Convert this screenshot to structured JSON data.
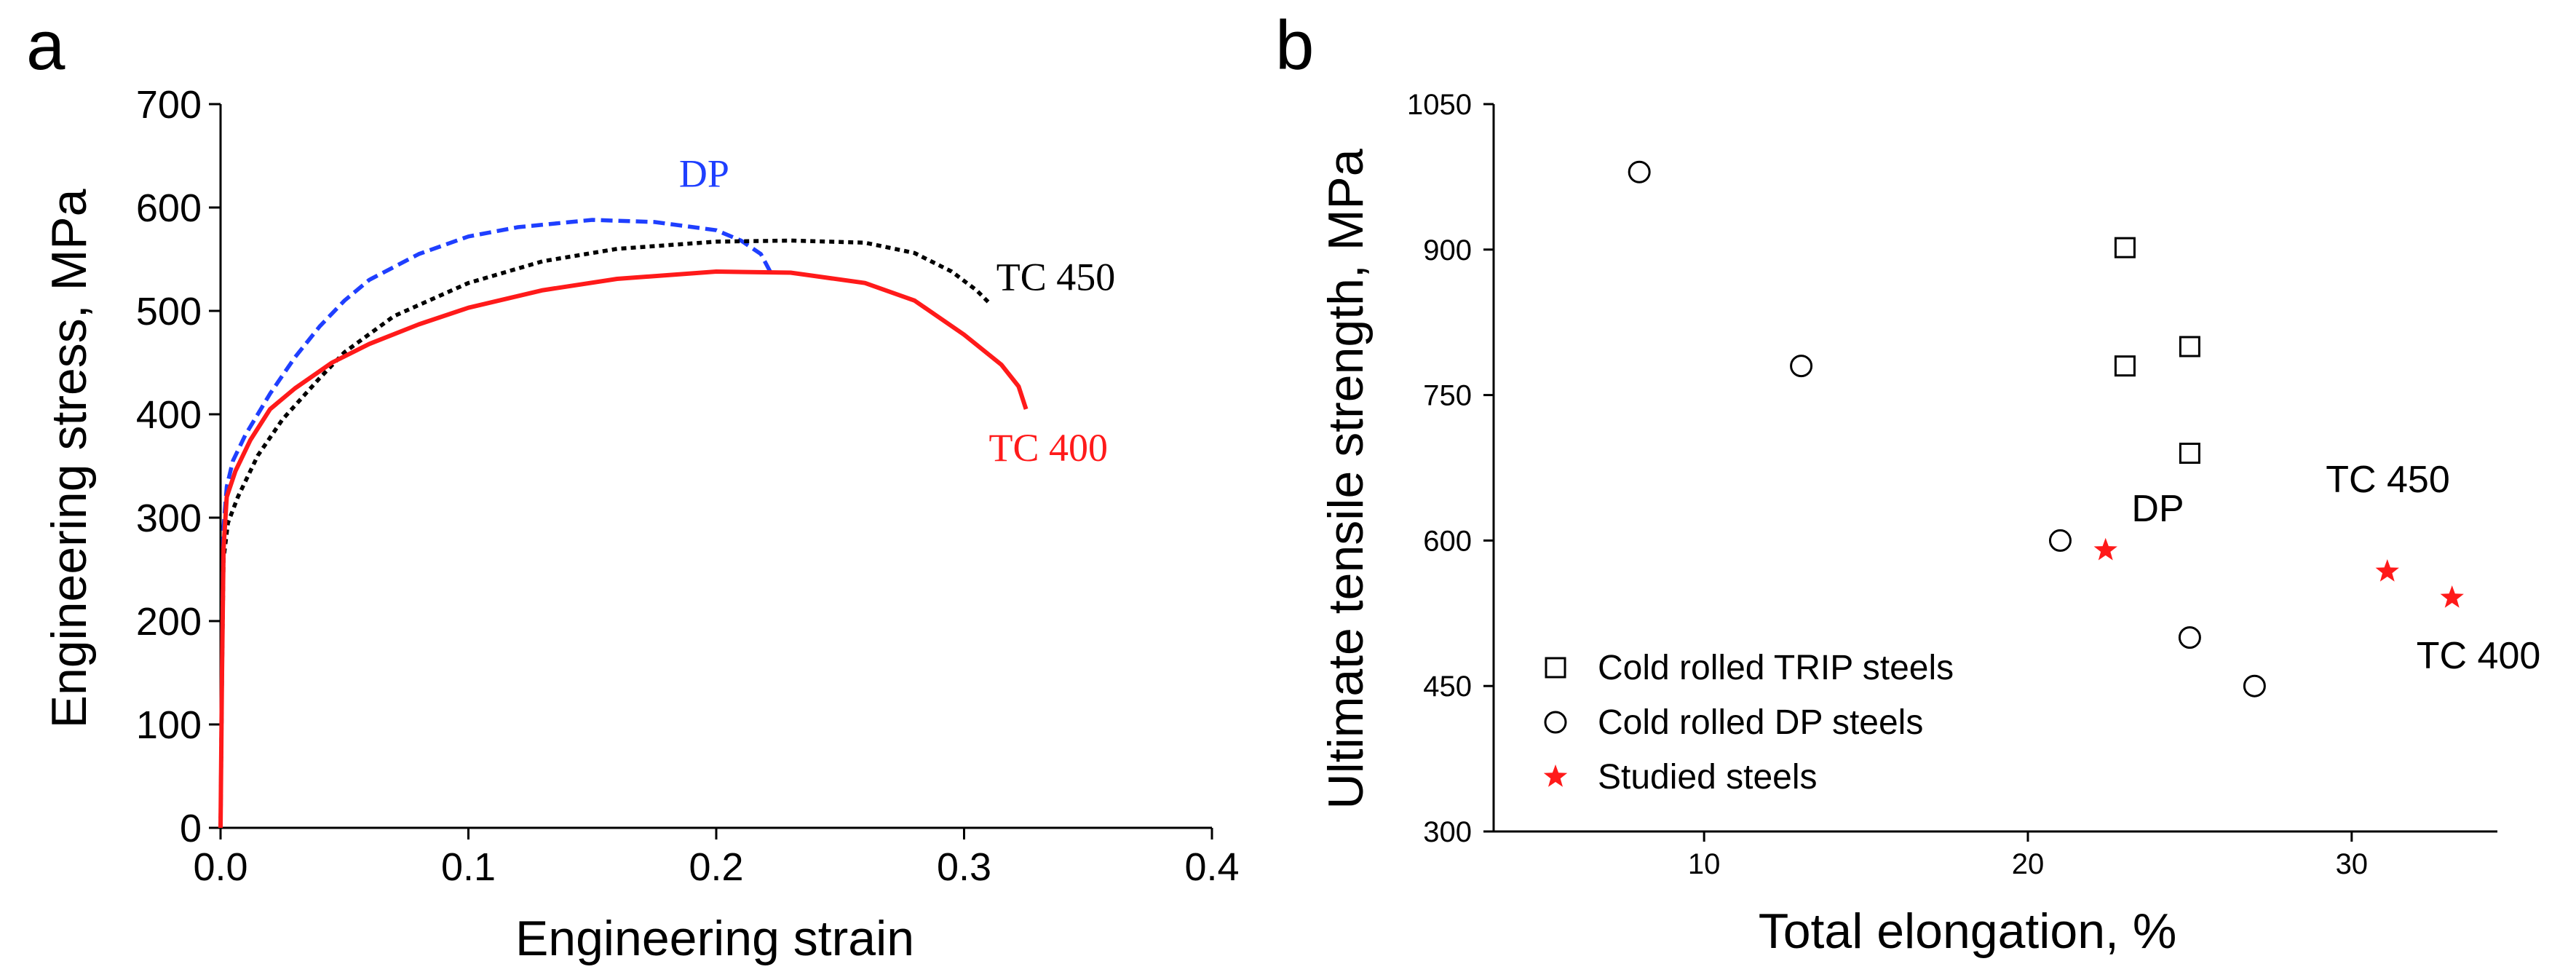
{
  "chart_data": [
    {
      "panel_label": "a",
      "type": "line",
      "xlabel": "Engineering strain",
      "ylabel": "Engineering stress, MPa",
      "xlim": [
        0.0,
        0.4
      ],
      "ylim": [
        0,
        700
      ],
      "x_ticks": [
        0.0,
        0.1,
        0.2,
        0.3,
        0.4
      ],
      "x_tick_labels": [
        "0.0",
        "0.1",
        "0.2",
        "0.3",
        "0.4"
      ],
      "y_ticks": [
        0,
        100,
        200,
        300,
        400,
        500,
        600,
        700
      ],
      "y_tick_labels": [
        "0",
        "100",
        "200",
        "300",
        "400",
        "500",
        "600",
        "700"
      ],
      "series": [
        {
          "name": "DP",
          "label": "DP",
          "color": "#1f3fff",
          "style": "dashed",
          "label_at": [
            0.185,
            620
          ],
          "points": [
            [
              0,
              0
            ],
            [
              0.0006,
              150
            ],
            [
              0.0012,
              290
            ],
            [
              0.0025,
              330
            ],
            [
              0.005,
              355
            ],
            [
              0.01,
              380
            ],
            [
              0.02,
              420
            ],
            [
              0.03,
              455
            ],
            [
              0.04,
              485
            ],
            [
              0.05,
              510
            ],
            [
              0.06,
              530
            ],
            [
              0.08,
              555
            ],
            [
              0.1,
              572
            ],
            [
              0.12,
              581
            ],
            [
              0.15,
              588
            ],
            [
              0.175,
              586
            ],
            [
              0.2,
              578
            ],
            [
              0.21,
              568
            ],
            [
              0.218,
              555
            ],
            [
              0.222,
              537
            ]
          ]
        },
        {
          "name": "TC 450",
          "label": "TC 450",
          "color": "#000000",
          "style": "dotted",
          "label_at": [
            0.313,
            520
          ],
          "points": [
            [
              0,
              0
            ],
            [
              0.0006,
              150
            ],
            [
              0.0012,
              260
            ],
            [
              0.003,
              295
            ],
            [
              0.007,
              320
            ],
            [
              0.015,
              360
            ],
            [
              0.025,
              395
            ],
            [
              0.04,
              435
            ],
            [
              0.05,
              460
            ],
            [
              0.07,
              495
            ],
            [
              0.1,
              527
            ],
            [
              0.13,
              548
            ],
            [
              0.16,
              560
            ],
            [
              0.2,
              567
            ],
            [
              0.23,
              568
            ],
            [
              0.26,
              566
            ],
            [
              0.28,
              556
            ],
            [
              0.295,
              538
            ],
            [
              0.305,
              520
            ],
            [
              0.31,
              508
            ]
          ]
        },
        {
          "name": "TC 400",
          "label": "TC 400",
          "color": "#ff1a1a",
          "style": "solid",
          "label_at": [
            0.31,
            355
          ],
          "points": [
            [
              0,
              0
            ],
            [
              0.0006,
              150
            ],
            [
              0.0012,
              270
            ],
            [
              0.0025,
              320
            ],
            [
              0.006,
              345
            ],
            [
              0.012,
              375
            ],
            [
              0.02,
              405
            ],
            [
              0.03,
              425
            ],
            [
              0.045,
              450
            ],
            [
              0.06,
              468
            ],
            [
              0.08,
              487
            ],
            [
              0.1,
              503
            ],
            [
              0.13,
              520
            ],
            [
              0.16,
              531
            ],
            [
              0.2,
              538
            ],
            [
              0.23,
              537
            ],
            [
              0.26,
              527
            ],
            [
              0.28,
              510
            ],
            [
              0.3,
              477
            ],
            [
              0.315,
              448
            ],
            [
              0.322,
              427
            ],
            [
              0.325,
              405
            ]
          ]
        }
      ]
    },
    {
      "panel_label": "b",
      "type": "scatter",
      "xlabel": "Total elongation, %",
      "ylabel": "Ultimate tensile strength, MPa",
      "xlim": [
        3.5,
        34.5
      ],
      "ylim": [
        300,
        1050
      ],
      "x_ticks": [
        10,
        20,
        30
      ],
      "x_tick_labels": [
        "10",
        "20",
        "30"
      ],
      "y_ticks": [
        300,
        450,
        600,
        750,
        900,
        1050
      ],
      "y_tick_labels": [
        "300",
        "450",
        "600",
        "750",
        "900",
        "1050"
      ],
      "series": [
        {
          "name": "Cold rolled TRIP steels",
          "marker": "square",
          "color": "#000000",
          "points": [
            [
              23,
              902
            ],
            [
              25,
              800
            ],
            [
              23,
              780
            ],
            [
              25,
              690
            ]
          ]
        },
        {
          "name": "Cold rolled DP steels",
          "marker": "circle",
          "color": "#000000",
          "points": [
            [
              8,
              980
            ],
            [
              13,
              780
            ],
            [
              21,
              600
            ],
            [
              25,
              500
            ],
            [
              27,
              450
            ]
          ]
        },
        {
          "name": "Studied steels",
          "marker": "star",
          "color": "#ff1a1a",
          "points": [
            [
              22.4,
              590
            ],
            [
              31.1,
              568
            ],
            [
              33.1,
              541
            ]
          ]
        }
      ],
      "point_labels": [
        {
          "text": "DP",
          "at": [
            23.2,
            620
          ]
        },
        {
          "text": "TC 450",
          "at": [
            29.2,
            650
          ]
        },
        {
          "text": "TC 400",
          "at": [
            32.0,
            468
          ]
        }
      ]
    }
  ]
}
